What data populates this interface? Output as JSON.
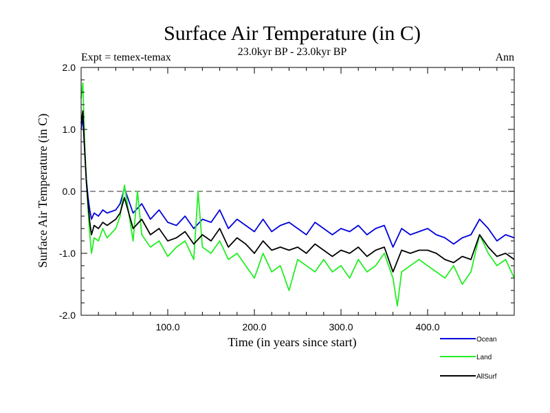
{
  "chart_data": {
    "type": "line",
    "title": "Surface Air Temperature (in C)",
    "subtitle": "23.0kyr BP - 23.0kyr BP",
    "left_label": "Expt = temex-temax",
    "right_label": "Ann",
    "xlabel": "Time (in years since start)",
    "ylabel": "Surface Air Temperature (in C)",
    "xlim": [
      0,
      500
    ],
    "ylim": [
      -2.0,
      2.0
    ],
    "xticks": [
      {
        "value": 100,
        "label": "100.0"
      },
      {
        "value": 200,
        "label": "200.0"
      },
      {
        "value": 300,
        "label": "300.0"
      },
      {
        "value": 400,
        "label": "400.0"
      }
    ],
    "yticks": [
      {
        "value": 2.0,
        "label": "2.0"
      },
      {
        "value": 1.0,
        "label": "1.0"
      },
      {
        "value": 0.0,
        "label": "0.0"
      },
      {
        "value": -1.0,
        "label": "-1.0"
      },
      {
        "value": -2.0,
        "label": "-2.0"
      }
    ],
    "reference_line": {
      "value": 0.0,
      "style": "dashed",
      "color": "#555555"
    },
    "legend_position": "bottom-right",
    "series": [
      {
        "name": "Ocean",
        "color": "#0000dd",
        "x": [
          0,
          2,
          4,
          6,
          8,
          10,
          12,
          15,
          20,
          25,
          30,
          40,
          45,
          50,
          60,
          70,
          80,
          90,
          100,
          110,
          120,
          130,
          140,
          150,
          160,
          170,
          180,
          190,
          200,
          210,
          220,
          230,
          240,
          250,
          260,
          270,
          280,
          290,
          300,
          310,
          320,
          330,
          340,
          350,
          360,
          370,
          380,
          390,
          400,
          410,
          420,
          430,
          440,
          450,
          460,
          470,
          480,
          490,
          500
        ],
        "values": [
          1.0,
          1.2,
          0.7,
          0.2,
          -0.1,
          -0.3,
          -0.45,
          -0.35,
          -0.4,
          -0.3,
          -0.35,
          -0.3,
          -0.2,
          0.05,
          -0.35,
          -0.2,
          -0.45,
          -0.3,
          -0.5,
          -0.55,
          -0.4,
          -0.6,
          -0.45,
          -0.5,
          -0.3,
          -0.6,
          -0.45,
          -0.55,
          -0.65,
          -0.45,
          -0.65,
          -0.55,
          -0.5,
          -0.6,
          -0.7,
          -0.5,
          -0.6,
          -0.7,
          -0.6,
          -0.65,
          -0.55,
          -0.7,
          -0.6,
          -0.55,
          -0.9,
          -0.6,
          -0.7,
          -0.65,
          -0.6,
          -0.7,
          -0.75,
          -0.85,
          -0.75,
          -0.7,
          -0.45,
          -0.6,
          -0.8,
          -0.7,
          -0.75
        ]
      },
      {
        "name": "Land",
        "color": "#22ee22",
        "x": [
          0,
          2,
          4,
          6,
          8,
          10,
          12,
          15,
          20,
          25,
          30,
          40,
          45,
          50,
          60,
          65,
          70,
          80,
          90,
          100,
          110,
          120,
          130,
          135,
          140,
          150,
          160,
          170,
          180,
          190,
          200,
          210,
          220,
          230,
          240,
          250,
          260,
          270,
          280,
          290,
          300,
          310,
          320,
          330,
          340,
          350,
          360,
          365,
          370,
          380,
          390,
          400,
          410,
          420,
          430,
          440,
          450,
          460,
          470,
          480,
          490,
          500
        ],
        "values": [
          1.5,
          1.75,
          0.8,
          0.2,
          -0.3,
          -0.7,
          -1.0,
          -0.75,
          -0.8,
          -0.6,
          -0.75,
          -0.6,
          -0.4,
          0.1,
          -0.8,
          0.0,
          -0.7,
          -0.9,
          -0.8,
          -1.05,
          -0.9,
          -0.8,
          -1.1,
          0.0,
          -0.9,
          -1.0,
          -0.8,
          -1.1,
          -1.0,
          -1.2,
          -1.4,
          -1.0,
          -1.3,
          -1.2,
          -1.6,
          -1.1,
          -1.2,
          -1.3,
          -1.1,
          -1.3,
          -1.2,
          -1.4,
          -1.1,
          -1.3,
          -1.2,
          -1.0,
          -1.4,
          -1.85,
          -1.3,
          -1.2,
          -1.1,
          -1.2,
          -1.3,
          -1.4,
          -1.2,
          -1.5,
          -1.3,
          -0.7,
          -1.0,
          -1.2,
          -1.1,
          -1.4
        ]
      },
      {
        "name": "AllSurf",
        "color": "#000000",
        "x": [
          0,
          2,
          4,
          6,
          8,
          10,
          12,
          15,
          20,
          25,
          30,
          40,
          45,
          50,
          60,
          70,
          80,
          90,
          100,
          110,
          120,
          130,
          140,
          150,
          160,
          170,
          180,
          190,
          200,
          210,
          220,
          230,
          240,
          250,
          260,
          270,
          280,
          290,
          300,
          310,
          320,
          330,
          340,
          350,
          360,
          370,
          380,
          390,
          400,
          410,
          420,
          430,
          440,
          450,
          460,
          470,
          480,
          490,
          500
        ],
        "values": [
          1.1,
          1.3,
          0.7,
          0.15,
          -0.2,
          -0.5,
          -0.7,
          -0.55,
          -0.6,
          -0.5,
          -0.55,
          -0.45,
          -0.35,
          -0.1,
          -0.6,
          -0.45,
          -0.7,
          -0.6,
          -0.8,
          -0.75,
          -0.65,
          -0.85,
          -0.7,
          -0.8,
          -0.6,
          -0.9,
          -0.75,
          -0.85,
          -1.0,
          -0.8,
          -0.95,
          -0.9,
          -0.95,
          -0.9,
          -1.0,
          -0.85,
          -0.95,
          -1.05,
          -0.95,
          -1.0,
          -0.9,
          -1.05,
          -0.95,
          -0.9,
          -1.3,
          -0.95,
          -1.0,
          -0.95,
          -0.95,
          -1.0,
          -1.1,
          -1.15,
          -1.05,
          -1.1,
          -0.7,
          -0.9,
          -1.05,
          -1.0,
          -1.1
        ]
      }
    ]
  }
}
